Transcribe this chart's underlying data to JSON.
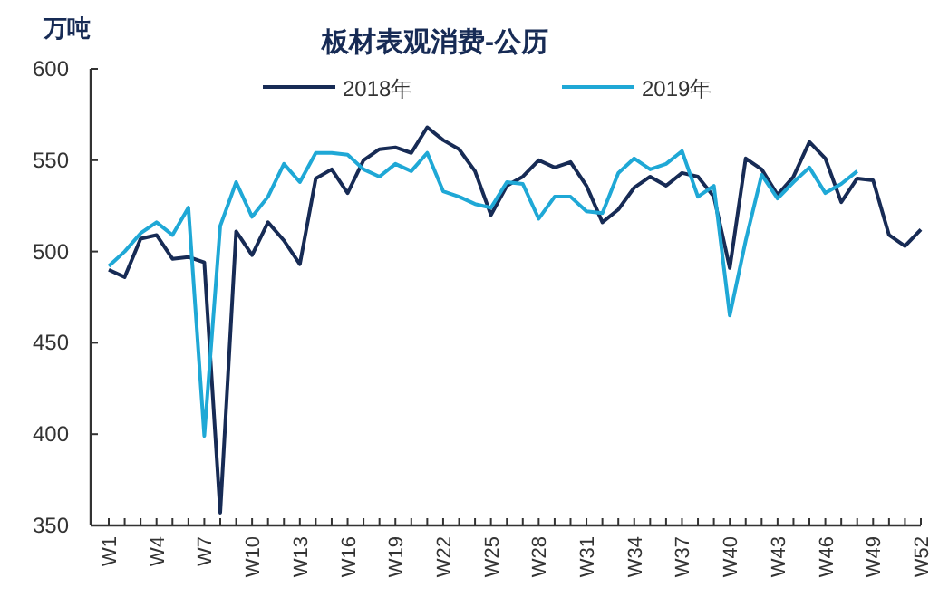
{
  "chart_data": {
    "type": "line",
    "title": "板材表观消费-公历",
    "ylabel": "万吨",
    "categories": [
      "W1",
      null,
      null,
      "W4",
      null,
      null,
      "W7",
      null,
      null,
      "W10",
      null,
      null,
      "W13",
      null,
      null,
      "W16",
      null,
      null,
      "W19",
      null,
      null,
      "W22",
      null,
      null,
      "W25",
      null,
      null,
      "W28",
      null,
      null,
      "W31",
      null,
      null,
      "W34",
      null,
      null,
      "W37",
      null,
      null,
      "W40",
      null,
      null,
      "W43",
      null,
      null,
      "W46",
      null,
      null,
      "W49",
      null,
      null,
      "W52"
    ],
    "series": [
      {
        "name": "2018年",
        "color": "#172b55",
        "values": [
          490,
          486,
          507,
          509,
          496,
          497,
          494,
          357,
          511,
          498,
          516,
          506,
          493,
          540,
          545,
          532,
          550,
          556,
          557,
          554,
          568,
          561,
          556,
          544,
          520,
          536,
          541,
          550,
          546,
          549,
          536,
          516,
          523,
          535,
          541,
          536,
          543,
          541,
          530,
          491,
          551,
          545,
          531,
          541,
          560,
          551,
          527,
          540,
          539,
          509,
          503,
          512
        ]
      },
      {
        "name": "2019年",
        "color": "#1fa8d6",
        "values": [
          492,
          500,
          510,
          516,
          509,
          524,
          399,
          514,
          538,
          519,
          530,
          548,
          538,
          554,
          554,
          553,
          545,
          541,
          548,
          544,
          554,
          533,
          530,
          526,
          524,
          538,
          537,
          518,
          530,
          530,
          522,
          521,
          543,
          551,
          545,
          548,
          555,
          530,
          536,
          465,
          506,
          542,
          529,
          538,
          546,
          532,
          537,
          544,
          null,
          null,
          null,
          null
        ]
      }
    ],
    "ylim": [
      350,
      600
    ],
    "yticks": [
      350,
      400,
      450,
      500,
      550,
      600
    ],
    "grid": false,
    "legend": "top",
    "line_style": "solid"
  }
}
